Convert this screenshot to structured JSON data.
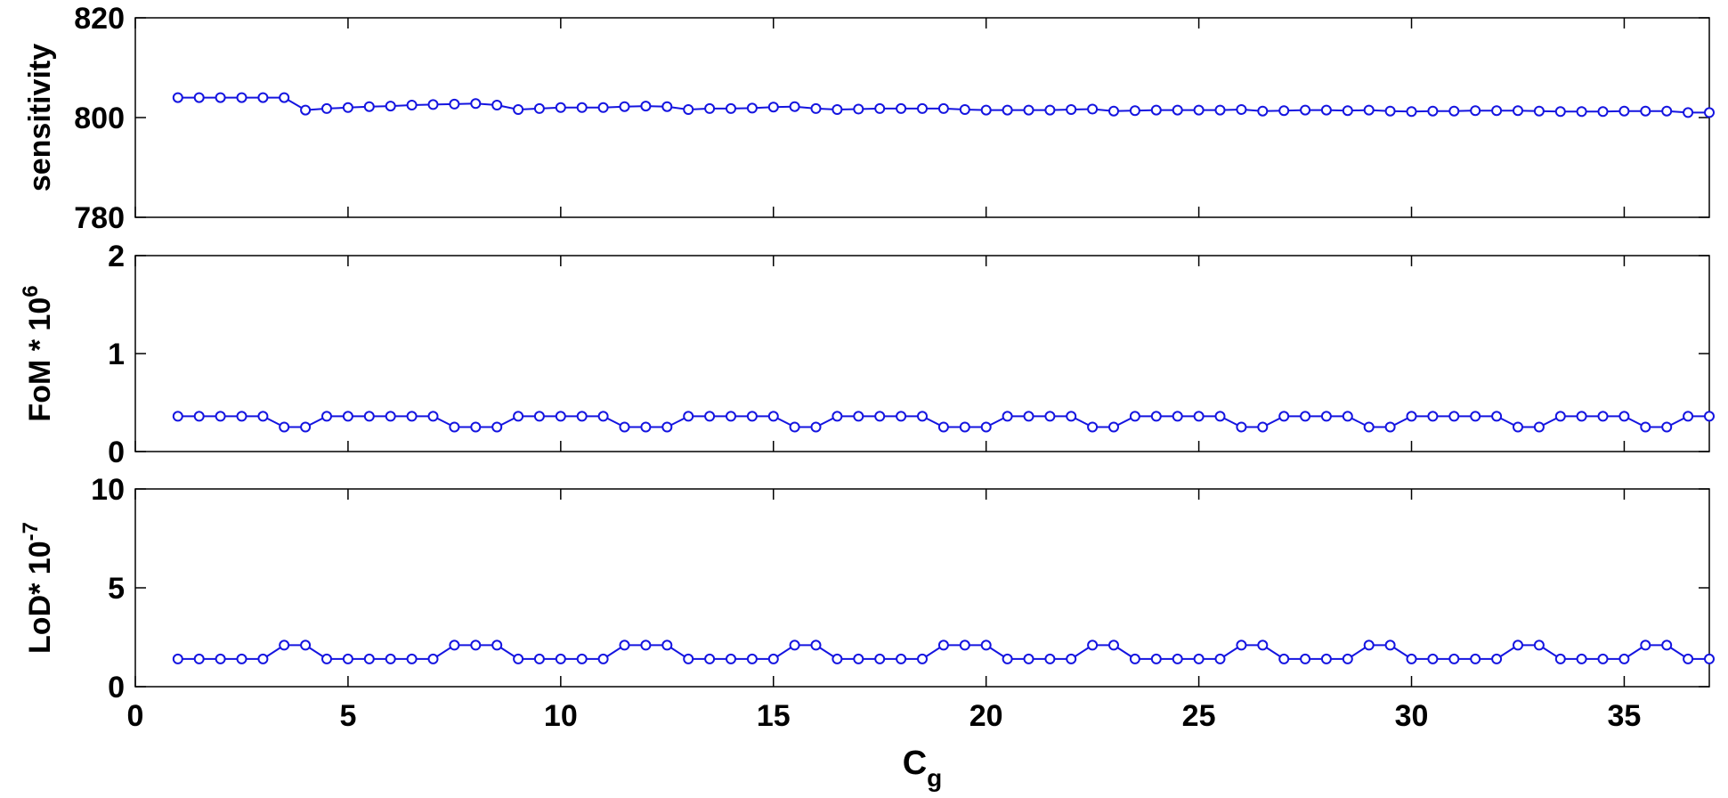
{
  "chart_data": [
    {
      "type": "line",
      "ylabel": "sensitivity",
      "ylabel_sup": "",
      "xlim": [
        0,
        37
      ],
      "ylim": [
        780,
        820
      ],
      "xticks": [],
      "yticks": [
        780,
        800,
        820
      ],
      "ytick_labels": [
        "780",
        "800",
        "820"
      ],
      "grid": false,
      "x": [
        1,
        1.5,
        2,
        2.5,
        3,
        3.5,
        4,
        4.5,
        5,
        5.5,
        6,
        6.5,
        7,
        7.5,
        8,
        8.5,
        9,
        9.5,
        10,
        10.5,
        11,
        11.5,
        12,
        12.5,
        13,
        13.5,
        14,
        14.5,
        15,
        15.5,
        16,
        16.5,
        17,
        17.5,
        18,
        18.5,
        19,
        19.5,
        20,
        20.5,
        21,
        21.5,
        22,
        22.5,
        23,
        23.5,
        24,
        24.5,
        25,
        25.5,
        26,
        26.5,
        27,
        27.5,
        28,
        28.5,
        29,
        29.5,
        30,
        30.5,
        31,
        31.5,
        32,
        32.5,
        33,
        33.5,
        34,
        34.5,
        35,
        35.5,
        36,
        36.5,
        37
      ],
      "series": [
        {
          "values": [
            804,
            804,
            804,
            804,
            804,
            804,
            801.5,
            801.8,
            802,
            802.2,
            802.3,
            802.5,
            802.6,
            802.7,
            802.8,
            802.5,
            801.6,
            801.8,
            802,
            802,
            802,
            802.2,
            802.3,
            802.2,
            801.6,
            801.8,
            801.8,
            801.9,
            802.1,
            802.2,
            801.8,
            801.6,
            801.7,
            801.8,
            801.8,
            801.8,
            801.8,
            801.6,
            801.5,
            801.5,
            801.5,
            801.5,
            801.6,
            801.7,
            801.3,
            801.4,
            801.5,
            801.5,
            801.5,
            801.5,
            801.6,
            801.3,
            801.4,
            801.5,
            801.5,
            801.4,
            801.5,
            801.3,
            801.2,
            801.3,
            801.3,
            801.4,
            801.4,
            801.4,
            801.3,
            801.2,
            801.2,
            801.2,
            801.3,
            801.3,
            801.3,
            801,
            801
          ]
        }
      ]
    },
    {
      "type": "line",
      "ylabel": "FoM * 10",
      "ylabel_sup": "6",
      "xlim": [
        0,
        37
      ],
      "ylim": [
        0,
        2
      ],
      "xticks": [],
      "yticks": [
        0,
        1,
        2
      ],
      "ytick_labels": [
        "0",
        "1",
        "2"
      ],
      "grid": false,
      "x": [
        1,
        1.5,
        2,
        2.5,
        3,
        3.5,
        4,
        4.5,
        5,
        5.5,
        6,
        6.5,
        7,
        7.5,
        8,
        8.5,
        9,
        9.5,
        10,
        10.5,
        11,
        11.5,
        12,
        12.5,
        13,
        13.5,
        14,
        14.5,
        15,
        15.5,
        16,
        16.5,
        17,
        17.5,
        18,
        18.5,
        19,
        19.5,
        20,
        20.5,
        21,
        21.5,
        22,
        22.5,
        23,
        23.5,
        24,
        24.5,
        25,
        25.5,
        26,
        26.5,
        27,
        27.5,
        28,
        28.5,
        29,
        29.5,
        30,
        30.5,
        31,
        31.5,
        32,
        32.5,
        33,
        33.5,
        34,
        34.5,
        35,
        35.5,
        36,
        36.5,
        37
      ],
      "series": [
        {
          "values": [
            0.36,
            0.36,
            0.36,
            0.36,
            0.36,
            0.25,
            0.25,
            0.36,
            0.36,
            0.36,
            0.36,
            0.36,
            0.36,
            0.25,
            0.25,
            0.25,
            0.36,
            0.36,
            0.36,
            0.36,
            0.36,
            0.25,
            0.25,
            0.25,
            0.36,
            0.36,
            0.36,
            0.36,
            0.36,
            0.25,
            0.25,
            0.36,
            0.36,
            0.36,
            0.36,
            0.36,
            0.25,
            0.25,
            0.25,
            0.36,
            0.36,
            0.36,
            0.36,
            0.25,
            0.25,
            0.36,
            0.36,
            0.36,
            0.36,
            0.36,
            0.25,
            0.25,
            0.36,
            0.36,
            0.36,
            0.36,
            0.25,
            0.25,
            0.36,
            0.36,
            0.36,
            0.36,
            0.36,
            0.25,
            0.25,
            0.36,
            0.36,
            0.36,
            0.36,
            0.25,
            0.25,
            0.36,
            0.36
          ]
        }
      ]
    },
    {
      "type": "line",
      "ylabel": "LoD* 10",
      "ylabel_sup": "-7",
      "xlim": [
        0,
        37
      ],
      "ylim": [
        0,
        10
      ],
      "xticks": [
        0,
        5,
        10,
        15,
        20,
        25,
        30,
        35
      ],
      "xtick_labels": [
        "0",
        "5",
        "10",
        "15",
        "20",
        "25",
        "30",
        "35"
      ],
      "xlabel": "C",
      "xlabel_sub": "g",
      "yticks": [
        0,
        5,
        10
      ],
      "ytick_labels": [
        "0",
        "5",
        "10"
      ],
      "grid": false,
      "x": [
        1,
        1.5,
        2,
        2.5,
        3,
        3.5,
        4,
        4.5,
        5,
        5.5,
        6,
        6.5,
        7,
        7.5,
        8,
        8.5,
        9,
        9.5,
        10,
        10.5,
        11,
        11.5,
        12,
        12.5,
        13,
        13.5,
        14,
        14.5,
        15,
        15.5,
        16,
        16.5,
        17,
        17.5,
        18,
        18.5,
        19,
        19.5,
        20,
        20.5,
        21,
        21.5,
        22,
        22.5,
        23,
        23.5,
        24,
        24.5,
        25,
        25.5,
        26,
        26.5,
        27,
        27.5,
        28,
        28.5,
        29,
        29.5,
        30,
        30.5,
        31,
        31.5,
        32,
        32.5,
        33,
        33.5,
        34,
        34.5,
        35,
        35.5,
        36,
        36.5,
        37
      ],
      "series": [
        {
          "values": [
            1.4,
            1.4,
            1.4,
            1.4,
            1.4,
            2.1,
            2.1,
            1.4,
            1.4,
            1.4,
            1.4,
            1.4,
            1.4,
            2.1,
            2.1,
            2.1,
            1.4,
            1.4,
            1.4,
            1.4,
            1.4,
            2.1,
            2.1,
            2.1,
            1.4,
            1.4,
            1.4,
            1.4,
            1.4,
            2.1,
            2.1,
            1.4,
            1.4,
            1.4,
            1.4,
            1.4,
            2.1,
            2.1,
            2.1,
            1.4,
            1.4,
            1.4,
            1.4,
            2.1,
            2.1,
            1.4,
            1.4,
            1.4,
            1.4,
            1.4,
            2.1,
            2.1,
            1.4,
            1.4,
            1.4,
            1.4,
            2.1,
            2.1,
            1.4,
            1.4,
            1.4,
            1.4,
            1.4,
            2.1,
            2.1,
            1.4,
            1.4,
            1.4,
            1.4,
            2.1,
            2.1,
            1.4,
            1.4
          ]
        }
      ]
    }
  ],
  "colors": {
    "series": "#1414e0",
    "axes": "#000000"
  }
}
